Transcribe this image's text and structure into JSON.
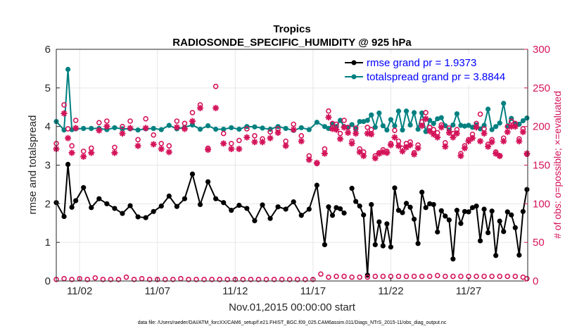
{
  "chart_data": {
    "type": "line",
    "title": "Tropics",
    "subtitle": "RADIOSONDE_SPECIFIC_HUMIDITY @ 925 hPa",
    "xlabel": "Nov.01,2015 00:00:00 start",
    "ylabel_left": "rmse and totalspread",
    "ylabel_right": "# of obs: o=possible; ×=evaluated",
    "footnote": "data file: /Users/raeder/DAI/ATM_forcXX/CAM6_setup/f.e21.FHIST_BGC.f09_025.CAM6assim.011/Diags_NTrS_2015-11/obs_diag_output.nc",
    "xlim": [
      0.5,
      30.8
    ],
    "ylim_left": [
      0,
      6
    ],
    "ylim_right": [
      0,
      300
    ],
    "yticks_left": [
      "0",
      "1",
      "2",
      "3",
      "4",
      "5",
      "6"
    ],
    "yticks_right": [
      "0",
      "50",
      "100",
      "150",
      "200",
      "250",
      "300"
    ],
    "xticks": [
      {
        "label": "11/02",
        "x": 2
      },
      {
        "label": "11/07",
        "x": 7
      },
      {
        "label": "11/12",
        "x": 12
      },
      {
        "label": "11/17",
        "x": 17
      },
      {
        "label": "11/22",
        "x": 22
      },
      {
        "label": "11/27",
        "x": 27
      }
    ],
    "grid": true,
    "legend_position": "top-right",
    "series": [
      {
        "name": "rmse grand pr = 1.9373",
        "color": "#000000",
        "axis": "left",
        "x": [
          0.5,
          1.0,
          1.25,
          1.5,
          1.75,
          2.25,
          2.75,
          3.25,
          3.75,
          4.25,
          4.75,
          5.25,
          5.75,
          6.25,
          6.75,
          7.25,
          7.75,
          8.25,
          8.75,
          9.25,
          9.75,
          10.25,
          10.75,
          11.25,
          11.75,
          12.25,
          12.75,
          13.25,
          13.75,
          14.25,
          14.75,
          15.25,
          15.75,
          16.25,
          16.75,
          17.25,
          17.75,
          18.0,
          18.25,
          18.5,
          18.75,
          19.0,
          19.25,
          19.5,
          19.75,
          20.0,
          20.25,
          20.5,
          20.75,
          21.0,
          21.25,
          21.5,
          21.75,
          22.0,
          22.25,
          22.5,
          22.75,
          23.0,
          23.25,
          23.5,
          23.75,
          24.0,
          24.25,
          24.5,
          24.75,
          25.0,
          25.25,
          25.5,
          25.75,
          26.0,
          26.25,
          26.5,
          26.75,
          27.0,
          27.25,
          27.5,
          27.75,
          28.0,
          28.25,
          28.5,
          28.75,
          29.0,
          29.25,
          29.5,
          29.75,
          30.0,
          30.25,
          30.5,
          30.75
        ],
        "values": [
          2.03,
          1.67,
          3.02,
          1.91,
          2.08,
          2.42,
          1.9,
          2.13,
          2.0,
          1.88,
          1.75,
          1.95,
          1.66,
          1.64,
          1.8,
          1.94,
          2.2,
          1.93,
          2.13,
          2.77,
          1.98,
          2.57,
          2.13,
          2.03,
          1.83,
          1.96,
          1.88,
          1.56,
          1.97,
          1.62,
          1.92,
          1.86,
          2.05,
          1.7,
          1.86,
          2.48,
          0.94,
          1.92,
          1.7,
          1.9,
          1.87,
          1.76,
          null,
          2.4,
          2.06,
          1.94,
          1.71,
          0.15,
          1.98,
          0.94,
          1.53,
          0.91,
          1.48,
          0.88,
          2.41,
          1.83,
          1.77,
          2.01,
          1.91,
          1.6,
          0.97,
          2.3,
          1.9,
          2.0,
          1.98,
          1.27,
          1.82,
          1.68,
          1.58,
          0.57,
          1.83,
          1.49,
          1.8,
          1.79,
          1.9,
          1.94,
          1.04,
          1.86,
          1.25,
          1.81,
          0.66,
          1.55,
          1.28,
          1.79,
          1.71,
          1.38,
          0.67,
          1.8,
          2.37
        ]
      },
      {
        "name": "totalspread grand pr = 3.8844",
        "color": "#008080",
        "axis": "left",
        "x": [
          0.5,
          1.0,
          1.25,
          1.5,
          1.75,
          2.25,
          2.75,
          3.25,
          3.75,
          4.25,
          4.75,
          5.25,
          5.75,
          6.25,
          6.75,
          7.25,
          7.75,
          8.25,
          8.75,
          9.25,
          9.75,
          10.25,
          10.75,
          11.25,
          11.75,
          12.25,
          12.75,
          13.25,
          13.75,
          14.25,
          14.75,
          15.25,
          15.75,
          16.25,
          16.75,
          17.25,
          17.75,
          18.0,
          18.25,
          18.5,
          18.75,
          19.0,
          19.25,
          19.5,
          19.75,
          20.0,
          20.25,
          20.5,
          20.75,
          21.0,
          21.25,
          21.5,
          21.75,
          22.0,
          22.25,
          22.5,
          22.75,
          23.0,
          23.25,
          23.5,
          23.75,
          24.0,
          24.25,
          24.5,
          24.75,
          25.0,
          25.25,
          25.5,
          25.75,
          26.0,
          26.25,
          26.5,
          26.75,
          27.0,
          27.25,
          27.5,
          27.75,
          28.0,
          28.25,
          28.5,
          28.75,
          29.0,
          29.25,
          29.5,
          29.75,
          30.0,
          30.25,
          30.5,
          30.75
        ],
        "values": [
          4.13,
          3.91,
          5.48,
          3.92,
          3.94,
          3.95,
          3.95,
          3.95,
          3.92,
          3.97,
          3.94,
          3.94,
          3.91,
          3.94,
          3.95,
          3.92,
          4.03,
          3.94,
          3.98,
          4.04,
          3.93,
          4.02,
          3.93,
          3.93,
          3.97,
          3.93,
          4.0,
          3.99,
          3.96,
          3.93,
          4.0,
          3.95,
          3.9,
          3.97,
          3.92,
          4.11,
          4.0,
          3.95,
          4.06,
          4.0,
          4.16,
          4.0,
          3.97,
          4.05,
          3.93,
          4.13,
          4.13,
          4.16,
          4.3,
          3.98,
          4.35,
          4.02,
          3.91,
          4.18,
          4.02,
          4.4,
          3.91,
          4.4,
          4.04,
          4.36,
          3.93,
          4.35,
          3.87,
          4.16,
          4.08,
          4.2,
          4.23,
          4.02,
          3.91,
          4.04,
          4.33,
          4.03,
          4.01,
          4.03,
          3.98,
          4.04,
          3.94,
          4.03,
          4.45,
          3.92,
          4.0,
          4.09,
          4.6,
          4.0,
          4.21,
          4.08,
          4.06,
          4.15,
          4.22
        ]
      },
      {
        "name": "obs possible",
        "color": "#d4145a",
        "axis": "right",
        "marker": "circle",
        "x": [
          0.5,
          1.0,
          1.25,
          1.5,
          1.75,
          2.25,
          2.75,
          3.25,
          3.75,
          4.25,
          4.75,
          5.25,
          5.75,
          6.25,
          6.75,
          7.25,
          7.75,
          8.25,
          8.75,
          9.25,
          9.75,
          10.25,
          10.75,
          11.25,
          11.75,
          12.25,
          12.75,
          13.25,
          13.75,
          14.25,
          14.75,
          15.25,
          15.75,
          16.25,
          16.75,
          17.25,
          17.75,
          18.0,
          18.25,
          18.5,
          18.75,
          19.0,
          19.25,
          19.5,
          19.75,
          20.0,
          20.25,
          20.5,
          20.75,
          21.0,
          21.25,
          21.5,
          21.75,
          22.0,
          22.25,
          22.5,
          22.75,
          23.0,
          23.25,
          23.5,
          23.75,
          24.0,
          24.25,
          24.5,
          24.75,
          25.0,
          25.25,
          25.5,
          25.75,
          26.0,
          26.25,
          26.5,
          26.75,
          27.0,
          27.25,
          27.5,
          27.75,
          28.0,
          28.25,
          28.5,
          28.75,
          29.0,
          29.25,
          29.5,
          29.75,
          30.0,
          30.25,
          30.5,
          30.75
        ],
        "values": [
          178,
          228,
          197,
          175,
          208,
          168,
          172,
          205,
          207,
          173,
          200,
          207,
          183,
          210,
          189,
          178,
          175,
          207,
          204,
          218,
          228,
          172,
          252,
          191,
          178,
          182,
          197,
          188,
          184,
          193,
          197,
          181,
          203,
          188,
          162,
          152,
          171,
          220,
          204,
          203,
          191,
          208,
          199,
          181,
          198,
          171,
          167,
          199,
          196,
          162,
          166,
          170,
          168,
          178,
          195,
          181,
          172,
          178,
          180,
          166,
          176,
          206,
          218,
          199,
          196,
          192,
          202,
          179,
          198,
          191,
          196,
          165,
          175,
          183,
          190,
          204,
          216,
          197,
          177,
          183,
          167,
          162,
          185,
          200,
          207,
          204,
          184,
          197,
          164
        ]
      },
      {
        "name": "obs evaluated",
        "color": "#d4145a",
        "axis": "right",
        "marker": "star",
        "x": [
          0.5,
          1.0,
          1.25,
          1.5,
          1.75,
          2.25,
          2.75,
          3.25,
          3.75,
          4.25,
          4.75,
          5.25,
          5.75,
          6.25,
          6.75,
          7.25,
          7.75,
          8.25,
          8.75,
          9.25,
          9.75,
          10.25,
          10.75,
          11.25,
          11.75,
          12.25,
          12.75,
          13.25,
          13.75,
          14.25,
          14.75,
          15.25,
          15.75,
          16.25,
          16.75,
          17.25,
          17.75,
          18.0,
          18.25,
          18.5,
          18.75,
          19.0,
          19.25,
          19.5,
          19.75,
          20.0,
          20.25,
          20.5,
          20.75,
          21.0,
          21.25,
          21.5,
          21.75,
          22.0,
          22.25,
          22.5,
          22.75,
          23.0,
          23.25,
          23.5,
          23.75,
          24.0,
          24.25,
          24.5,
          24.75,
          25.0,
          25.25,
          25.5,
          25.75,
          26.0,
          26.25,
          26.5,
          26.75,
          27.0,
          27.25,
          27.5,
          27.75,
          28.0,
          28.25,
          28.5,
          28.75,
          29.0,
          29.25,
          29.5,
          29.75,
          30.0,
          30.25,
          30.5,
          30.75
        ],
        "values": [
          171,
          217,
          185,
          166,
          198,
          161,
          166,
          195,
          200,
          166,
          191,
          198,
          175,
          198,
          177,
          171,
          167,
          199,
          197,
          207,
          224,
          170,
          224,
          178,
          171,
          171,
          186,
          180,
          180,
          185,
          192,
          175,
          196,
          181,
          157,
          153,
          165,
          212,
          197,
          196,
          184,
          199,
          192,
          178,
          191,
          167,
          162,
          191,
          190,
          159,
          165,
          167,
          166,
          176,
          186,
          175,
          168,
          173,
          176,
          164,
          172,
          201,
          210,
          194,
          190,
          186,
          199,
          174,
          192,
          186,
          191,
          162,
          172,
          181,
          185,
          199,
          181,
          191,
          174,
          180,
          165,
          162,
          181,
          193,
          200,
          200,
          181,
          193,
          165
        ]
      },
      {
        "name": "obs near zero (possible)",
        "color": "#d4145a",
        "axis": "right",
        "marker": "circle",
        "x": [
          0.5,
          1.0,
          1.5,
          2.0,
          2.5,
          3.0,
          3.5,
          4.0,
          4.5,
          5.0,
          5.5,
          6.0,
          6.5,
          7.0,
          7.5,
          8.0,
          8.5,
          9.0,
          9.5,
          10.0,
          10.5,
          11.0,
          11.5,
          12.0,
          12.5,
          13.0,
          13.5,
          14.0,
          14.5,
          15.0,
          15.5,
          16.0,
          16.5,
          17.0,
          17.5,
          18.0,
          18.5,
          19.0,
          19.5,
          20.0,
          20.5,
          21.0,
          21.5,
          22.0,
          22.5,
          23.0,
          23.5,
          24.0,
          24.5,
          25.0,
          25.5,
          26.0,
          26.5,
          27.0,
          27.5,
          28.0,
          28.5,
          29.0,
          29.5,
          30.0,
          30.5,
          30.75
        ],
        "values": [
          2,
          3,
          2,
          3,
          2,
          4,
          2,
          2,
          2,
          5,
          2,
          3,
          2,
          2,
          2,
          2,
          3,
          2,
          2,
          2,
          2,
          2,
          2,
          2,
          2,
          2,
          2,
          2,
          2,
          2,
          2,
          2,
          2,
          2,
          9,
          5,
          6,
          6,
          5,
          5,
          5,
          6,
          6,
          6,
          6,
          6,
          6,
          6,
          6,
          7,
          6,
          6,
          6,
          6,
          6,
          6,
          6,
          6,
          6,
          6,
          5,
          3
        ]
      }
    ]
  }
}
